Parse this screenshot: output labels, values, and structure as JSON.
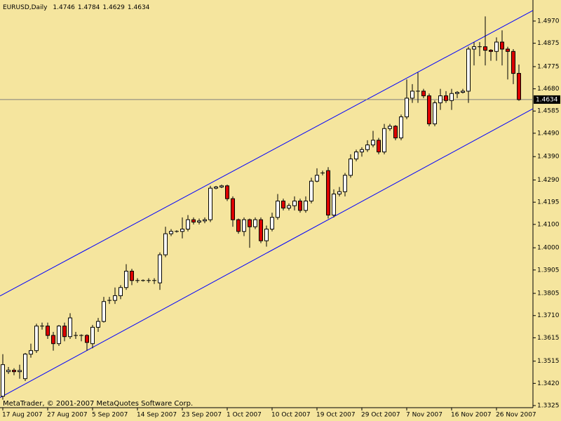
{
  "chart_data": {
    "type": "candlestick",
    "title": "EURUSD,Daily",
    "annotation": "MetaTrader, © 2001-2007 MetaQuotes Software Corp.",
    "categories": [
      "17 Aug 2007",
      null,
      null,
      null,
      null,
      null,
      null,
      null,
      "27 Aug 2007",
      null,
      null,
      null,
      null,
      null,
      null,
      null,
      "5 Sep 2007",
      null,
      null,
      null,
      null,
      null,
      null,
      null,
      "14 Sep 2007",
      null,
      null,
      null,
      null,
      null,
      null,
      null,
      "23 Sep 2007",
      null,
      null,
      null,
      null,
      null,
      null,
      null,
      "1 Oct 2007",
      null,
      null,
      null,
      null,
      null,
      null,
      null,
      "10 Oct 2007",
      null,
      null,
      null,
      null,
      null,
      null,
      null,
      "19 Oct 2007",
      null,
      null,
      null,
      null,
      null,
      null,
      null,
      "29 Oct 2007",
      null,
      null,
      null,
      null,
      null,
      null,
      null,
      "7 Nov 2007",
      null,
      null,
      null,
      null,
      null,
      null,
      null,
      "16 Nov 2007",
      null,
      null,
      null,
      null,
      null,
      null,
      null,
      "26 Nov 2007",
      null,
      null,
      null,
      null
    ],
    "open": [
      1.3365,
      1.347,
      1.3476,
      1.347,
      1.344,
      1.3545,
      1.356,
      1.3665,
      1.3665,
      1.3625,
      1.359,
      1.3665,
      1.362,
      1.3625,
      1.3625,
      1.3625,
      1.359,
      1.366,
      1.3685,
      1.3775,
      1.3775,
      1.3795,
      1.383,
      1.39,
      1.386,
      1.386,
      1.386,
      1.386,
      1.385,
      1.397,
      1.406,
      1.407,
      1.407,
      1.408,
      1.412,
      1.411,
      1.4115,
      1.412,
      1.4255,
      1.426,
      1.4265,
      1.421,
      1.412,
      1.407,
      1.412,
      1.409,
      1.412,
      1.403,
      1.408,
      1.413,
      1.42,
      1.417,
      1.418,
      1.42,
      1.416,
      1.42,
      1.4285,
      1.432,
      1.433,
      1.414,
      1.423,
      1.424,
      1.431,
      1.438,
      1.441,
      1.442,
      1.444,
      1.446,
      1.441,
      1.451,
      1.452,
      1.447,
      1.456,
      1.464,
      1.467,
      1.467,
      1.465,
      1.453,
      1.462,
      1.465,
      1.463,
      1.466,
      1.4665,
      1.467,
      1.485,
      1.486,
      1.486,
      1.4845,
      1.484,
      1.488,
      1.485,
      1.484,
      1.4746
    ],
    "high": [
      1.3545,
      1.349,
      1.3485,
      1.35,
      1.355,
      1.359,
      1.3675,
      1.368,
      1.368,
      1.364,
      1.367,
      1.368,
      1.372,
      1.364,
      1.363,
      1.363,
      1.367,
      1.37,
      1.379,
      1.379,
      1.383,
      1.384,
      1.393,
      1.391,
      1.387,
      1.3865,
      1.387,
      1.387,
      1.398,
      1.409,
      1.408,
      1.4075,
      1.413,
      1.414,
      1.413,
      1.4125,
      1.413,
      1.4265,
      1.4265,
      1.427,
      1.427,
      1.422,
      1.4125,
      1.413,
      1.4125,
      1.413,
      1.413,
      1.4095,
      1.415,
      1.423,
      1.421,
      1.419,
      1.422,
      1.421,
      1.422,
      1.43,
      1.434,
      1.433,
      1.4345,
      1.425,
      1.426,
      1.432,
      1.44,
      1.442,
      1.443,
      1.446,
      1.45,
      1.447,
      1.453,
      1.453,
      1.4525,
      1.457,
      1.472,
      1.47,
      1.475,
      1.468,
      1.466,
      1.463,
      1.468,
      1.467,
      1.468,
      1.467,
      1.468,
      1.486,
      1.488,
      1.488,
      1.499,
      1.485,
      1.49,
      1.493,
      1.486,
      1.485,
      1.4784
    ],
    "low": [
      1.335,
      1.346,
      1.3455,
      1.344,
      1.343,
      1.353,
      1.355,
      1.365,
      1.361,
      1.356,
      1.358,
      1.36,
      1.361,
      1.361,
      1.36,
      1.356,
      1.357,
      1.364,
      1.368,
      1.376,
      1.376,
      1.378,
      1.382,
      1.384,
      1.385,
      1.3855,
      1.385,
      1.3845,
      1.382,
      1.396,
      1.405,
      1.4065,
      1.404,
      1.407,
      1.41,
      1.41,
      1.4105,
      1.411,
      1.425,
      1.4255,
      1.42,
      1.409,
      1.406,
      1.405,
      1.4,
      1.408,
      1.402,
      1.4005,
      1.407,
      1.412,
      1.416,
      1.416,
      1.416,
      1.415,
      1.415,
      1.419,
      1.428,
      1.431,
      1.4125,
      1.413,
      1.422,
      1.422,
      1.43,
      1.437,
      1.439,
      1.441,
      1.443,
      1.44,
      1.44,
      1.45,
      1.446,
      1.446,
      1.455,
      1.462,
      1.462,
      1.464,
      1.452,
      1.452,
      1.459,
      1.462,
      1.459,
      1.464,
      1.466,
      1.462,
      1.478,
      1.482,
      1.478,
      1.48,
      1.48,
      1.478,
      1.472,
      1.47,
      1.4629
    ],
    "close": [
      1.35,
      1.3476,
      1.347,
      1.3475,
      1.3545,
      1.356,
      1.3665,
      1.3665,
      1.3625,
      1.359,
      1.3665,
      1.362,
      1.37,
      1.3625,
      1.3625,
      1.3595,
      1.366,
      1.3685,
      1.377,
      1.3775,
      1.3795,
      1.383,
      1.39,
      1.386,
      1.386,
      1.386,
      1.386,
      1.386,
      1.397,
      1.406,
      1.407,
      1.407,
      1.408,
      1.412,
      1.411,
      1.4115,
      1.412,
      1.4255,
      1.426,
      1.4265,
      1.421,
      1.412,
      1.407,
      1.412,
      1.409,
      1.412,
      1.403,
      1.408,
      1.413,
      1.42,
      1.417,
      1.418,
      1.42,
      1.416,
      1.42,
      1.4285,
      1.431,
      1.432,
      1.414,
      1.423,
      1.424,
      1.431,
      1.438,
      1.441,
      1.442,
      1.444,
      1.446,
      1.441,
      1.451,
      1.452,
      1.447,
      1.456,
      1.464,
      1.467,
      1.467,
      1.465,
      1.453,
      1.462,
      1.465,
      1.463,
      1.466,
      1.4665,
      1.467,
      1.485,
      1.486,
      1.486,
      1.4845,
      1.484,
      1.488,
      1.485,
      1.484,
      1.4746,
      1.4634
    ],
    "up_color": "#ffffff",
    "down_color": "#dd0000",
    "ylim": [
      1.3316,
      1.506
    ],
    "yticks": [
      {
        "value": 1.497,
        "label": "1.4970"
      },
      1.4875,
      1.4775,
      {
        "value": 1.468,
        "label": "1.4680"
      },
      1.4585,
      {
        "value": 1.449,
        "label": "1.4490"
      },
      {
        "value": 1.439,
        "label": "1.4390"
      },
      {
        "value": 1.429,
        "label": "1.4290"
      },
      1.4195,
      {
        "value": 1.41,
        "label": "1.4100"
      },
      {
        "value": 1.4,
        "label": "1.4000"
      },
      1.3905,
      1.3805,
      {
        "value": 1.371,
        "label": "1.3710"
      },
      1.3615,
      1.3515,
      {
        "value": 1.342,
        "label": "1.3420"
      },
      1.3325
    ],
    "grid": false,
    "channel": {
      "color": "#0000ff",
      "upper": [
        1.3794,
        1.5015
      ],
      "lower": [
        1.3359,
        1.4595
      ]
    }
  }
}
